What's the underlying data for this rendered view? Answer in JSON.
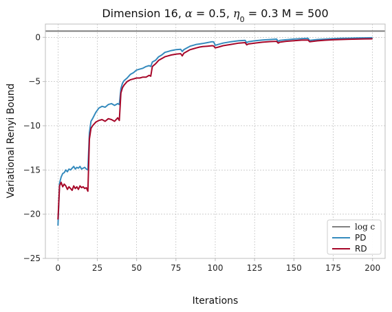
{
  "chart_data": {
    "type": "line",
    "title_prefix": "Dimension 16, ",
    "title_alpha_symbol": "α",
    "title_alpha_value": " = 0.5, ",
    "title_eta_symbol": "η",
    "title_eta_sub": "0",
    "title_eta_value": " = 0.3 M = 500",
    "xlabel": "Iterations",
    "ylabel": "Variational Renyi Bound",
    "xlim": [
      -8,
      208
    ],
    "ylim": [
      -25,
      1.5
    ],
    "xticks": [
      0,
      25,
      50,
      75,
      100,
      125,
      150,
      175,
      200
    ],
    "yticks": [
      0,
      -5,
      -10,
      -15,
      -20,
      -25
    ],
    "ytick_labels": [
      "0",
      "−5",
      "−10",
      "−15",
      "−20",
      "−25"
    ],
    "grid": true,
    "legend_placement": "lower-right",
    "reference_line": {
      "name": "log c",
      "value": 0.7,
      "color": "#7f7f7f"
    },
    "series": [
      {
        "name": "PD",
        "color": "#348abd",
        "x": [
          0,
          1,
          2,
          3,
          4,
          5,
          6,
          7,
          8,
          9,
          10,
          11,
          12,
          13,
          14,
          15,
          16,
          17,
          18,
          19,
          20,
          21,
          22,
          24,
          26,
          28,
          30,
          32,
          34,
          36,
          38,
          39,
          40,
          41,
          42,
          44,
          46,
          48,
          50,
          52,
          54,
          56,
          58,
          59,
          60,
          62,
          64,
          66,
          68,
          70,
          72,
          75,
          78,
          79,
          80,
          82,
          84,
          86,
          88,
          90,
          92,
          95,
          98,
          99,
          100,
          102,
          105,
          110,
          115,
          119,
          120,
          121,
          125,
          130,
          135,
          139,
          140,
          141,
          145,
          150,
          155,
          159,
          160,
          165,
          170,
          175,
          180,
          185,
          190,
          195,
          200
        ],
        "y": [
          -21.3,
          -16.5,
          -15.8,
          -15.4,
          -15.3,
          -15.0,
          -15.2,
          -14.9,
          -15.0,
          -14.8,
          -14.6,
          -14.9,
          -14.7,
          -14.8,
          -14.6,
          -14.9,
          -14.8,
          -14.7,
          -14.9,
          -15.0,
          -10.8,
          -9.5,
          -9.2,
          -8.5,
          -8.0,
          -7.8,
          -7.9,
          -7.6,
          -7.5,
          -7.7,
          -7.5,
          -7.6,
          -5.8,
          -5.2,
          -4.9,
          -4.6,
          -4.2,
          -4.0,
          -3.7,
          -3.6,
          -3.5,
          -3.3,
          -3.2,
          -3.3,
          -2.8,
          -2.6,
          -2.2,
          -2.0,
          -1.7,
          -1.6,
          -1.5,
          -1.4,
          -1.35,
          -1.6,
          -1.4,
          -1.2,
          -1.0,
          -0.9,
          -0.8,
          -0.75,
          -0.7,
          -0.6,
          -0.5,
          -0.52,
          -0.9,
          -0.8,
          -0.65,
          -0.5,
          -0.38,
          -0.35,
          -0.6,
          -0.5,
          -0.4,
          -0.3,
          -0.25,
          -0.2,
          -0.45,
          -0.35,
          -0.28,
          -0.2,
          -0.15,
          -0.12,
          -0.35,
          -0.25,
          -0.2,
          -0.15,
          -0.12,
          -0.1,
          -0.08,
          -0.06,
          -0.05
        ]
      },
      {
        "name": "RD",
        "color": "#a60628",
        "x": [
          0,
          1,
          2,
          3,
          4,
          5,
          6,
          7,
          8,
          9,
          10,
          11,
          12,
          13,
          14,
          15,
          16,
          17,
          18,
          19,
          20,
          21,
          22,
          24,
          26,
          28,
          30,
          32,
          34,
          36,
          38,
          39,
          40,
          41,
          42,
          44,
          46,
          48,
          50,
          52,
          54,
          56,
          58,
          59,
          60,
          62,
          64,
          66,
          68,
          70,
          72,
          75,
          78,
          79,
          80,
          82,
          84,
          86,
          88,
          90,
          92,
          95,
          98,
          99,
          100,
          102,
          105,
          110,
          115,
          119,
          120,
          121,
          125,
          130,
          135,
          139,
          140,
          141,
          145,
          150,
          155,
          159,
          160,
          165,
          170,
          175,
          180,
          185,
          190,
          195,
          200
        ],
        "y": [
          -20.6,
          -16.8,
          -16.4,
          -16.9,
          -16.6,
          -16.8,
          -17.2,
          -16.9,
          -17.1,
          -17.3,
          -16.8,
          -17.1,
          -16.9,
          -17.2,
          -16.8,
          -17.0,
          -16.9,
          -17.1,
          -17.0,
          -17.4,
          -11.5,
          -10.3,
          -10.0,
          -9.6,
          -9.4,
          -9.3,
          -9.5,
          -9.2,
          -9.3,
          -9.5,
          -9.1,
          -9.4,
          -6.3,
          -5.7,
          -5.4,
          -5.0,
          -4.8,
          -4.7,
          -4.6,
          -4.6,
          -4.5,
          -4.5,
          -4.3,
          -4.4,
          -3.3,
          -3.0,
          -2.6,
          -2.4,
          -2.2,
          -2.1,
          -2.0,
          -1.9,
          -1.85,
          -2.1,
          -1.8,
          -1.6,
          -1.4,
          -1.3,
          -1.2,
          -1.1,
          -1.05,
          -1.0,
          -0.95,
          -0.98,
          -1.2,
          -1.1,
          -0.95,
          -0.8,
          -0.65,
          -0.6,
          -0.85,
          -0.75,
          -0.65,
          -0.55,
          -0.48,
          -0.45,
          -0.65,
          -0.55,
          -0.45,
          -0.38,
          -0.32,
          -0.3,
          -0.5,
          -0.4,
          -0.33,
          -0.28,
          -0.25,
          -0.22,
          -0.2,
          -0.18,
          -0.17
        ]
      }
    ]
  }
}
